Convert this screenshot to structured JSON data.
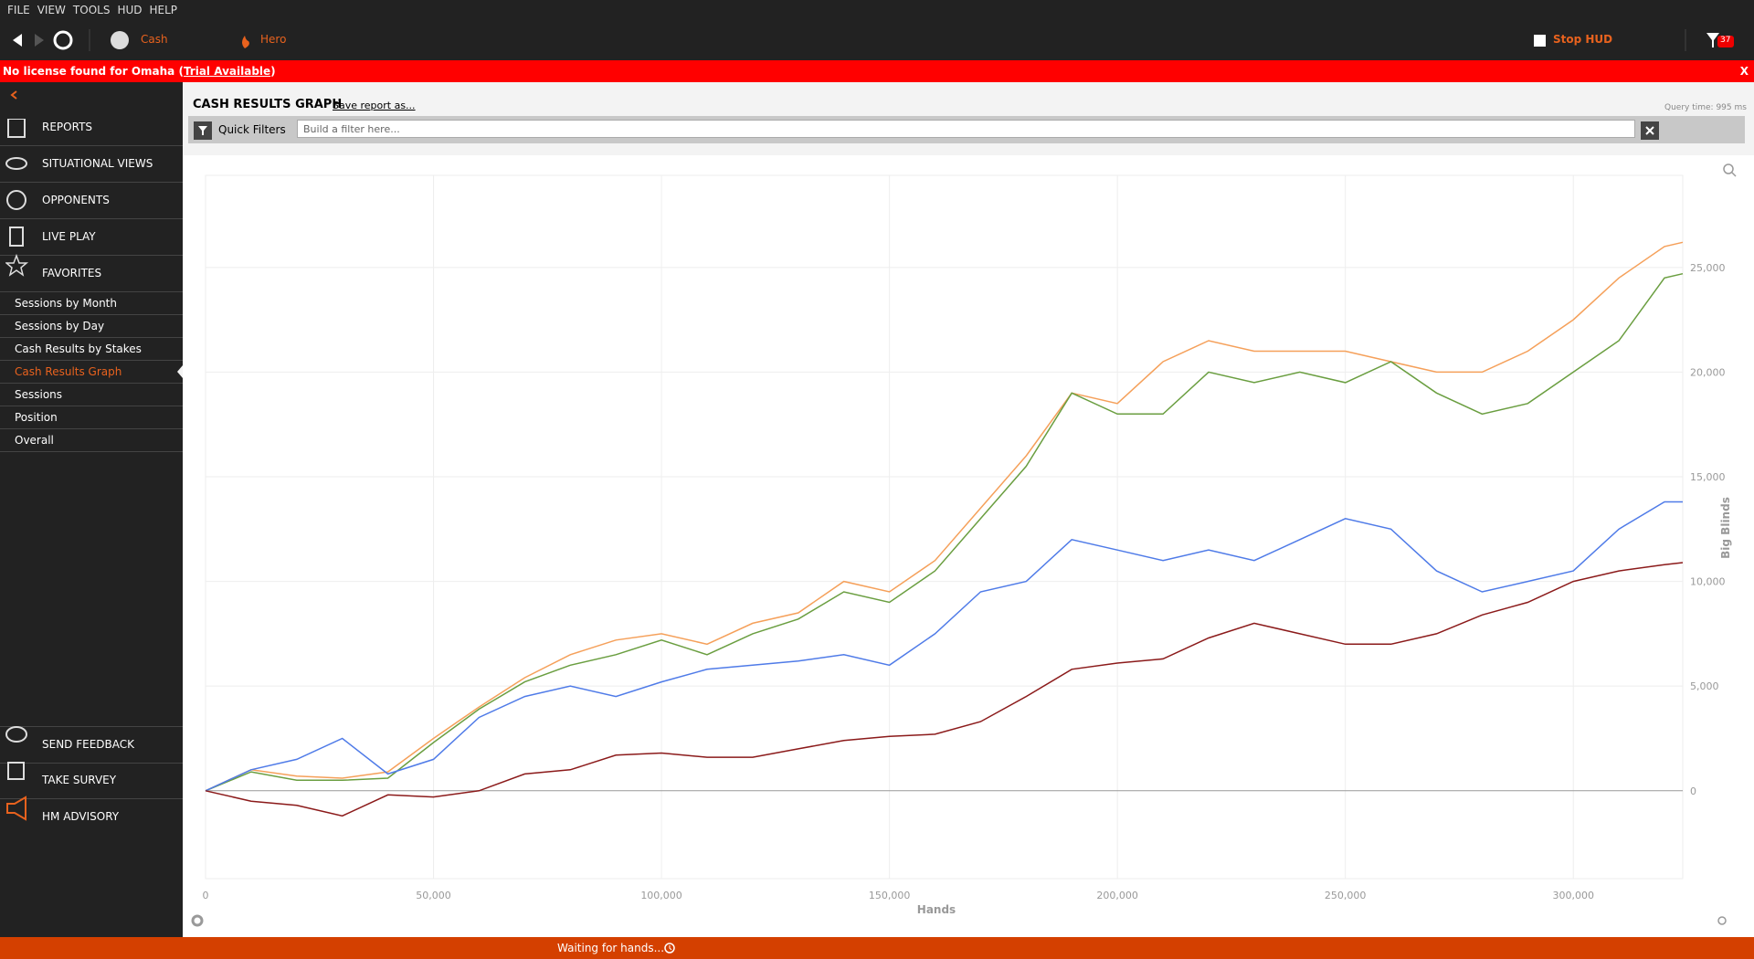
{
  "menu": [
    "FILE",
    "VIEW",
    "TOOLS",
    "HUD",
    "HELP"
  ],
  "toolbar": {
    "cash": "Cash",
    "hero": "Hero",
    "stop_hud": "Stop HUD",
    "filter_badge": "37"
  },
  "license_bar": {
    "prefix": "No license found for Omaha (",
    "link": "Trial Available",
    "suffix": ")",
    "close": "X"
  },
  "sidebar": {
    "nav": [
      "REPORTS",
      "SITUATIONAL VIEWS",
      "OPPONENTS",
      "LIVE PLAY",
      "FAVORITES"
    ],
    "favorites": [
      "Sessions by Month",
      "Sessions by Day",
      "Cash Results by Stakes",
      "Cash Results Graph",
      "Sessions",
      "Position",
      "Overall"
    ],
    "bottom": [
      "SEND FEEDBACK",
      "TAKE SURVEY",
      "HM ADVISORY"
    ]
  },
  "report": {
    "title": "CASH RESULTS GRAPH",
    "save": "Save report as...",
    "query_time": "Query time: 995 ms",
    "quick_filters": "Quick Filters",
    "filter_placeholder": "Build a filter here..."
  },
  "status": "Waiting for hands...",
  "chart_data": {
    "type": "line",
    "x_label": "Hands",
    "y_label": "Big Blinds",
    "grid": true,
    "x": [
      0,
      10000,
      20000,
      30000,
      40000,
      50000,
      60000,
      70000,
      80000,
      90000,
      100000,
      110000,
      120000,
      130000,
      140000,
      150000,
      160000,
      170000,
      180000,
      190000,
      200000,
      210000,
      220000,
      230000,
      240000,
      250000,
      260000,
      270000,
      280000,
      290000,
      300000,
      310000,
      320000,
      324000
    ],
    "series": [
      {
        "color": "#f5a05a",
        "values": [
          0,
          1000,
          700,
          600,
          900,
          2500,
          4000,
          5400,
          6500,
          7200,
          7500,
          7000,
          8000,
          8500,
          10000,
          9500,
          11000,
          13500,
          16000,
          19000,
          18500,
          20500,
          21500,
          21000,
          21000,
          21000,
          20500,
          20000,
          20000,
          21000,
          22500,
          24500,
          26000,
          26200
        ]
      },
      {
        "color": "#6a9e40",
        "values": [
          0,
          900,
          500,
          500,
          600,
          2300,
          3900,
          5200,
          6000,
          6500,
          7200,
          6500,
          7500,
          8200,
          9500,
          9000,
          10500,
          13000,
          15500,
          19000,
          18000,
          18000,
          20000,
          19500,
          20000,
          19500,
          20500,
          19000,
          18000,
          18500,
          20000,
          21500,
          24500,
          24700
        ]
      },
      {
        "color": "#4f7be8",
        "values": [
          0,
          1000,
          1500,
          2500,
          800,
          1500,
          3500,
          4500,
          5000,
          4500,
          5200,
          5800,
          6000,
          6200,
          6500,
          6000,
          7500,
          9500,
          10000,
          12000,
          11500,
          11000,
          11500,
          11000,
          12000,
          13000,
          12500,
          10500,
          9500,
          10000,
          10500,
          12500,
          13800,
          13800
        ]
      },
      {
        "color": "#8b1a1a",
        "values": [
          0,
          -500,
          -700,
          -1200,
          -200,
          -300,
          0,
          800,
          1000,
          1700,
          1800,
          1600,
          1600,
          2000,
          2400,
          2600,
          2700,
          3300,
          4500,
          5800,
          6100,
          6300,
          7300,
          8000,
          7500,
          7000,
          7000,
          7500,
          8400,
          9000,
          10000,
          10500,
          10800,
          10900
        ]
      }
    ],
    "xlim": [
      0,
      324000
    ],
    "ylim": [
      -4200,
      29400
    ],
    "xticks": [
      0,
      {
        "value": 50000,
        "label": "50,000"
      },
      {
        "value": 100000,
        "label": "100,000"
      },
      {
        "value": 150000,
        "label": "150,000"
      },
      {
        "value": 200000,
        "label": "200,000"
      },
      {
        "value": 250000,
        "label": "250,000"
      },
      {
        "value": 300000,
        "label": "300,000"
      }
    ],
    "yticks": [
      0,
      {
        "value": 5000,
        "label": "5,000"
      },
      {
        "value": 10000,
        "label": "10,000"
      },
      {
        "value": 15000,
        "label": "15,000"
      },
      {
        "value": 20000,
        "label": "20,000"
      },
      {
        "value": 25000,
        "label": "25,000"
      }
    ]
  }
}
